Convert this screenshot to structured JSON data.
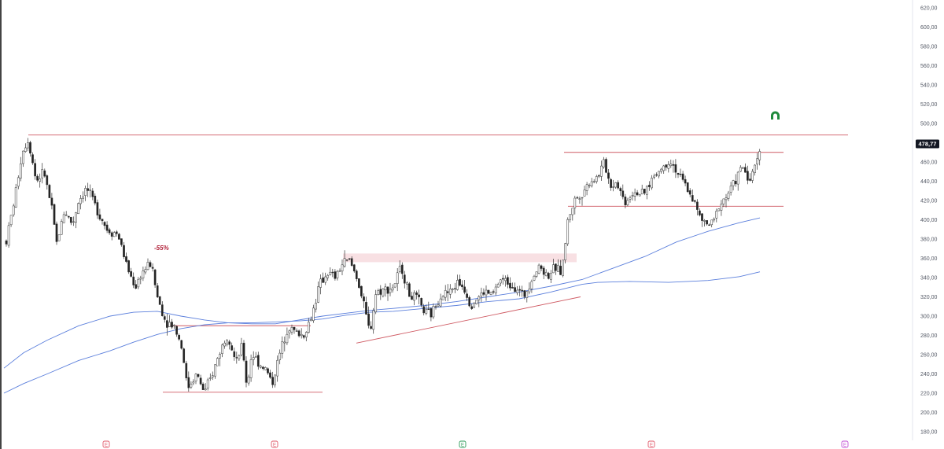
{
  "chart_data": {
    "type": "candlestick",
    "y_axis": {
      "ticks": [
        "620,00",
        "600,00",
        "580,00",
        "560,00",
        "540,00",
        "520,00",
        "500,00",
        "480,00",
        "460,00",
        "440,00",
        "420,00",
        "400,00",
        "380,00",
        "360,00",
        "340,00",
        "320,00",
        "300,00",
        "280,00",
        "260,00",
        "240,00",
        "220,00",
        "200,00",
        "180,00"
      ],
      "tick_values": [
        620,
        600,
        580,
        560,
        540,
        520,
        500,
        480,
        460,
        440,
        420,
        400,
        380,
        360,
        340,
        320,
        300,
        280,
        260,
        240,
        220,
        200,
        180
      ],
      "range": [
        173,
        628
      ]
    },
    "last_price": {
      "label": "478,77",
      "value": 478.77
    },
    "annotation": {
      "text": "-55%",
      "color": "#b2223a"
    },
    "time_markers": [
      {
        "label": "E",
        "color": "#e05a6a"
      },
      {
        "label": "E",
        "color": "#e05a6a"
      },
      {
        "label": "E",
        "color": "#2e9b5a"
      },
      {
        "label": "E",
        "color": "#e05a6a"
      },
      {
        "label": "E",
        "color": "#c24fd6"
      }
    ],
    "signal_icon": {
      "name": "arch-up-icon",
      "color": "#1f8a3b"
    },
    "colors": {
      "up": "#ffffff",
      "down": "#222222",
      "wick": "#333333",
      "ma_fast": "#5b7fdc",
      "ma_slow": "#5b7fdc",
      "levels": "#cf5a63",
      "zone": "#f5d6da"
    },
    "levels": [
      {
        "value": 488,
        "x_start": 36,
        "x_end": 1078
      },
      {
        "value": 470,
        "x_start": 717,
        "x_end": 996
      },
      {
        "value": 414,
        "x_start": 722,
        "x_end": 996
      },
      {
        "value": 290,
        "x_start": 212,
        "x_end": 395
      },
      {
        "value": 221,
        "x_start": 207,
        "x_end": 410
      }
    ],
    "trendline": {
      "from": [
        453,
        272
      ],
      "to": [
        738,
        320
      ]
    },
    "zone": {
      "top": 365,
      "bottom": 356,
      "x_start": 436,
      "x_end": 733
    },
    "waypoints": [
      [
        8,
        378
      ],
      [
        18,
        420
      ],
      [
        28,
        470
      ],
      [
        36,
        484
      ],
      [
        46,
        440
      ],
      [
        56,
        450
      ],
      [
        66,
        410
      ],
      [
        72,
        376
      ],
      [
        82,
        410
      ],
      [
        92,
        395
      ],
      [
        100,
        420
      ],
      [
        110,
        433
      ],
      [
        124,
        410
      ],
      [
        136,
        390
      ],
      [
        150,
        385
      ],
      [
        162,
        350
      ],
      [
        172,
        330
      ],
      [
        180,
        345
      ],
      [
        192,
        355
      ],
      [
        200,
        320
      ],
      [
        210,
        295
      ],
      [
        222,
        290
      ],
      [
        232,
        265
      ],
      [
        238,
        225
      ],
      [
        250,
        240
      ],
      [
        260,
        220
      ],
      [
        270,
        240
      ],
      [
        280,
        265
      ],
      [
        290,
        282
      ],
      [
        300,
        250
      ],
      [
        308,
        270
      ],
      [
        314,
        225
      ],
      [
        320,
        262
      ],
      [
        330,
        250
      ],
      [
        338,
        245
      ],
      [
        346,
        230
      ],
      [
        356,
        262
      ],
      [
        366,
        290
      ],
      [
        376,
        283
      ],
      [
        386,
        280
      ],
      [
        396,
        300
      ],
      [
        406,
        332
      ],
      [
        416,
        345
      ],
      [
        426,
        340
      ],
      [
        436,
        355
      ],
      [
        444,
        358
      ],
      [
        454,
        340
      ],
      [
        464,
        305
      ],
      [
        470,
        282
      ],
      [
        478,
        325
      ],
      [
        490,
        328
      ],
      [
        500,
        330
      ],
      [
        510,
        352
      ],
      [
        520,
        322
      ],
      [
        530,
        318
      ],
      [
        540,
        303
      ],
      [
        548,
        302
      ],
      [
        560,
        322
      ],
      [
        572,
        325
      ],
      [
        582,
        335
      ],
      [
        590,
        330
      ],
      [
        598,
        312
      ],
      [
        606,
        318
      ],
      [
        616,
        325
      ],
      [
        626,
        322
      ],
      [
        636,
        338
      ],
      [
        646,
        335
      ],
      [
        656,
        330
      ],
      [
        666,
        320
      ],
      [
        676,
        340
      ],
      [
        686,
        352
      ],
      [
        696,
        342
      ],
      [
        706,
        350
      ],
      [
        714,
        346
      ],
      [
        718,
        372
      ],
      [
        722,
        400
      ],
      [
        730,
        420
      ],
      [
        740,
        428
      ],
      [
        750,
        440
      ],
      [
        760,
        445
      ],
      [
        768,
        460
      ],
      [
        776,
        435
      ],
      [
        784,
        440
      ],
      [
        794,
        418
      ],
      [
        806,
        430
      ],
      [
        818,
        425
      ],
      [
        830,
        445
      ],
      [
        840,
        452
      ],
      [
        852,
        462
      ],
      [
        864,
        445
      ],
      [
        874,
        432
      ],
      [
        882,
        420
      ],
      [
        888,
        405
      ],
      [
        896,
        395
      ],
      [
        906,
        395
      ],
      [
        914,
        415
      ],
      [
        924,
        425
      ],
      [
        934,
        440
      ],
      [
        944,
        455
      ],
      [
        954,
        440
      ],
      [
        962,
        462
      ],
      [
        966,
        478
      ]
    ],
    "ma_fast": [
      [
        5,
        246
      ],
      [
        30,
        262
      ],
      [
        60,
        275
      ],
      [
        100,
        290
      ],
      [
        140,
        300
      ],
      [
        170,
        304
      ],
      [
        200,
        305
      ],
      [
        230,
        300
      ],
      [
        260,
        296
      ],
      [
        290,
        293
      ],
      [
        320,
        292
      ],
      [
        350,
        292
      ],
      [
        380,
        296
      ],
      [
        410,
        300
      ],
      [
        440,
        303
      ],
      [
        470,
        306
      ],
      [
        500,
        308
      ],
      [
        540,
        311
      ],
      [
        580,
        315
      ],
      [
        620,
        320
      ],
      [
        660,
        325
      ],
      [
        700,
        331
      ],
      [
        740,
        338
      ],
      [
        780,
        350
      ],
      [
        820,
        362
      ],
      [
        860,
        377
      ],
      [
        900,
        388
      ],
      [
        940,
        397
      ],
      [
        966,
        402
      ]
    ],
    "ma_slow": [
      [
        5,
        220
      ],
      [
        30,
        230
      ],
      [
        60,
        240
      ],
      [
        100,
        254
      ],
      [
        140,
        264
      ],
      [
        170,
        273
      ],
      [
        200,
        281
      ],
      [
        230,
        287
      ],
      [
        260,
        291
      ],
      [
        290,
        293
      ],
      [
        320,
        293
      ],
      [
        350,
        294
      ],
      [
        380,
        295
      ],
      [
        410,
        297
      ],
      [
        440,
        301
      ],
      [
        470,
        304
      ],
      [
        500,
        305
      ],
      [
        540,
        308
      ],
      [
        580,
        311
      ],
      [
        620,
        315
      ],
      [
        660,
        318
      ],
      [
        700,
        325
      ],
      [
        740,
        333
      ],
      [
        760,
        335
      ],
      [
        800,
        336
      ],
      [
        850,
        335
      ],
      [
        900,
        337
      ],
      [
        940,
        341
      ],
      [
        966,
        346
      ]
    ]
  }
}
